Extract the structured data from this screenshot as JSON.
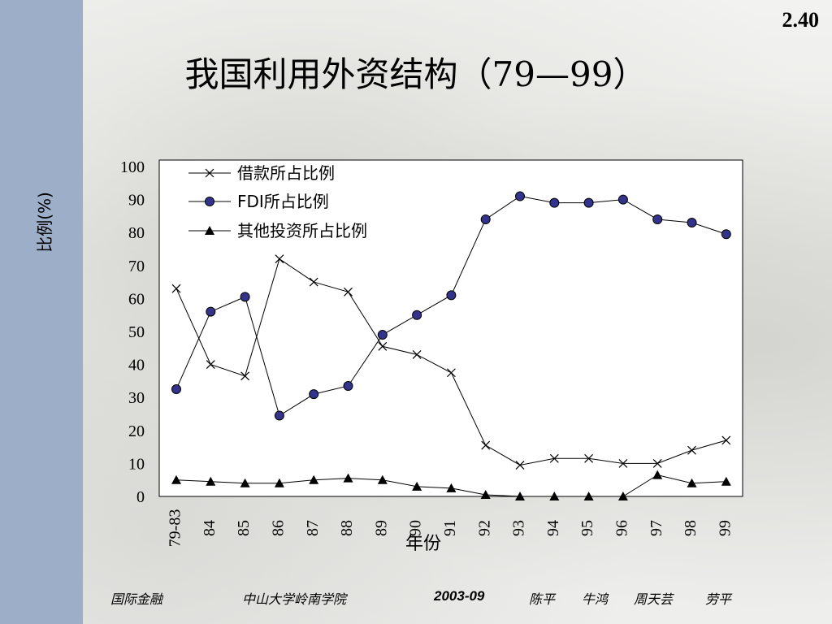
{
  "slide": {
    "number": "2.40",
    "title": "我国利用外资结构（79—99）"
  },
  "footer": {
    "course": "国际金融",
    "school": "中山大学岭南学院",
    "date": "2003-09",
    "authors": [
      "陈平",
      "牛鸿",
      "周天芸",
      "劳平"
    ]
  },
  "chart_data": {
    "type": "line",
    "xlabel": "年份",
    "ylabel": "比例(%)",
    "ylim": [
      0,
      100
    ],
    "yticks": [
      0,
      10,
      20,
      30,
      40,
      50,
      60,
      70,
      80,
      90,
      100
    ],
    "categories": [
      "79-83",
      "84",
      "85",
      "86",
      "87",
      "88",
      "89",
      "90",
      "91",
      "92",
      "93",
      "94",
      "95",
      "96",
      "97",
      "98",
      "99"
    ],
    "legend_position": "top-left",
    "series": [
      {
        "name": "借款所占比例",
        "marker": "x",
        "values": [
          63,
          40,
          36.5,
          72,
          65,
          62,
          45.5,
          43,
          37.5,
          15.5,
          9.5,
          11.5,
          11.5,
          10,
          10,
          14,
          17
        ]
      },
      {
        "name": "FDI所占比例",
        "marker": "circle",
        "values": [
          32.5,
          56,
          60.5,
          24.5,
          31,
          33.5,
          49,
          55,
          61,
          84,
          91,
          89,
          89,
          90,
          84,
          83,
          79.5
        ]
      },
      {
        "name": "其他投资所占比例",
        "marker": "triangle",
        "values": [
          5,
          4.5,
          4,
          4,
          5,
          5.5,
          5,
          3,
          2.5,
          0.5,
          0,
          0,
          0,
          0,
          6.5,
          4,
          4.5
        ]
      }
    ]
  },
  "colors": {
    "sidebar": "#9daec9",
    "marker_circle": "#33338c",
    "line": "#000000",
    "plot_bg": "#ffffff"
  }
}
